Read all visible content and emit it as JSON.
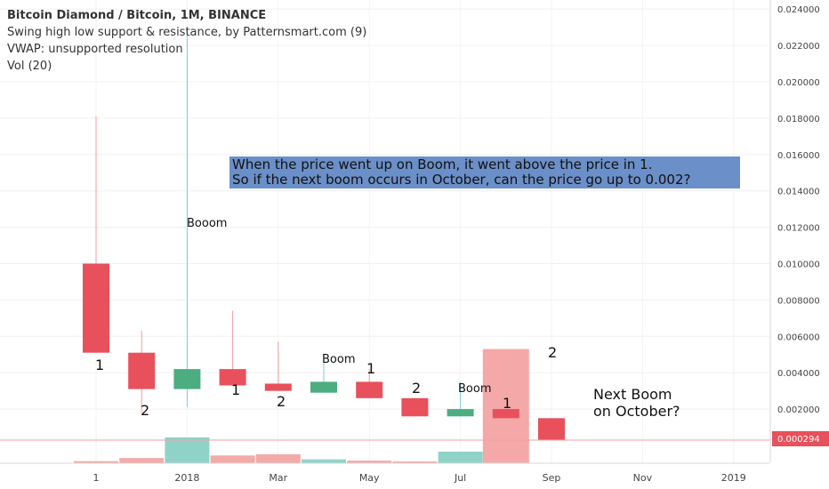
{
  "header": {
    "symbol_line": "Bitcoin Diamond / Bitcoin, 1M, BINANCE",
    "indicator_1": "Swing high low support & resistance, by Patternsmart.com (9)",
    "indicator_2": "VWAP: unsupported resolution",
    "indicator_3": "Vol (20)"
  },
  "note": {
    "line1": "When the price went up on Boom, it went above the price in 1.",
    "line2": "So if the next boom occurs in October, can the price go up to 0.002?"
  },
  "colors": {
    "up": "#4cad80",
    "down": "#e8505b",
    "note_bg": "#6b8fc8",
    "highlight_box": "#f4a8a8",
    "price_line": "#f5a0a8",
    "price_tag": "#e8505b"
  },
  "chart_data": {
    "type": "candlestick",
    "title": "Bitcoin Diamond / Bitcoin, 1M, BINANCE",
    "y_axis_ticks": [
      "0.024000",
      "0.022000",
      "0.020000",
      "0.018000",
      "0.016000",
      "0.014000",
      "0.012000",
      "0.010000",
      "0.008000",
      "0.006000",
      "0.004000",
      "0.002000"
    ],
    "ylim": [
      0,
      0.0244
    ],
    "x_axis_ticks": [
      "1",
      "2018",
      "Mar",
      "May",
      "Jul",
      "Sep",
      "Nov",
      "2019"
    ],
    "current_price_label": "0.000294",
    "current_price": 0.000294,
    "candles": [
      {
        "month": "2017-11",
        "open": 0.01,
        "close": 0.0051,
        "high": 0.0181,
        "low": 0.0051
      },
      {
        "month": "2017-12",
        "open": 0.0051,
        "close": 0.0031,
        "high": 0.0063,
        "low": 0.0018
      },
      {
        "month": "2018-01",
        "open": 0.0031,
        "close": 0.0042,
        "high": 0.0229,
        "low": 0.0021
      },
      {
        "month": "2018-02",
        "open": 0.0042,
        "close": 0.0033,
        "high": 0.0074,
        "low": 0.0033
      },
      {
        "month": "2018-03",
        "open": 0.0034,
        "close": 0.003,
        "high": 0.0057,
        "low": 0.003
      },
      {
        "month": "2018-04",
        "open": 0.0029,
        "close": 0.0035,
        "high": 0.0046,
        "low": 0.0029
      },
      {
        "month": "2018-05",
        "open": 0.0035,
        "close": 0.0026,
        "high": 0.0042,
        "low": 0.0026
      },
      {
        "month": "2018-06",
        "open": 0.0026,
        "close": 0.0016,
        "high": 0.0026,
        "low": 0.0016
      },
      {
        "month": "2018-07",
        "open": 0.0016,
        "close": 0.002,
        "high": 0.0035,
        "low": 0.0016
      },
      {
        "month": "2018-08",
        "open": 0.002,
        "close": 0.0015,
        "high": 0.002,
        "low": 0.0015
      },
      {
        "month": "2018-09",
        "open": 0.0015,
        "close": 0.0003,
        "high": 0.0015,
        "low": 0.0003
      }
    ],
    "volume": [
      0.08,
      0.2,
      1.0,
      0.3,
      0.35,
      0.15,
      0.1,
      0.05,
      0.45,
      0.05,
      0.0
    ],
    "highlight_box": {
      "month_index": 9,
      "top": 0.0053,
      "bottom": 0.0
    }
  },
  "annotations": {
    "booom": "Booom",
    "boom_a": "Boom",
    "boom_b": "Boom",
    "n1a": "1",
    "n2a": "2",
    "n1b": "1",
    "n2b": "2",
    "n1c": "1",
    "n2c": "2",
    "n1d": "1",
    "n2d": "2",
    "next_boom_1": "Next Boom",
    "next_boom_2": "on October?"
  }
}
